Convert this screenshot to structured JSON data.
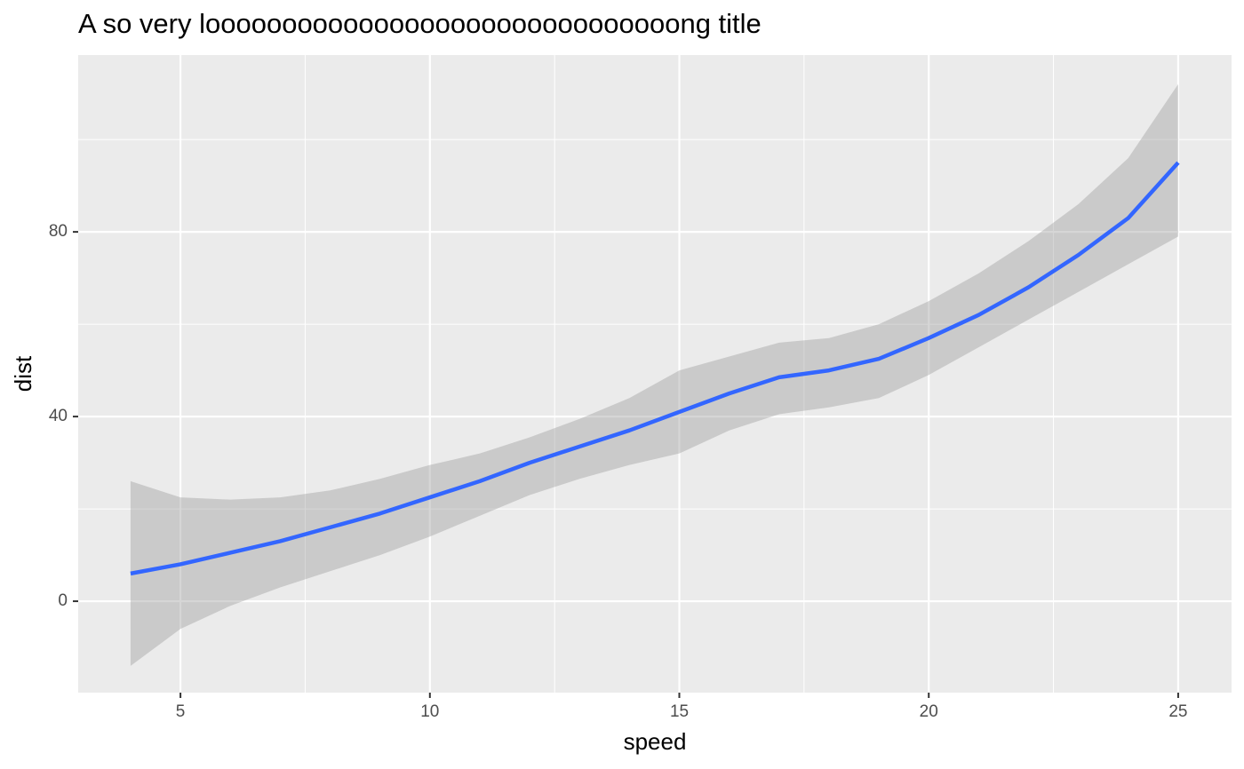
{
  "chart_data": {
    "type": "line",
    "title": "A so very looooooooooooooooooooooooooooooong title",
    "x_label": "speed",
    "y_label": "dist",
    "x": [
      4,
      5,
      6,
      7,
      8,
      9,
      10,
      11,
      12,
      13,
      14,
      15,
      16,
      17,
      18,
      19,
      20,
      21,
      22,
      23,
      24,
      25
    ],
    "series": [
      {
        "color": "#3366FF",
        "values": [
          6,
          8,
          10.5,
          13,
          16,
          19,
          22.5,
          26,
          30,
          33.5,
          37,
          41,
          45,
          48.5,
          50,
          52.5,
          57,
          62,
          68,
          75,
          83,
          95
        ],
        "lower": [
          -14,
          -6,
          -1,
          3,
          6.5,
          10,
          14,
          18.5,
          23,
          26.5,
          29.5,
          32,
          37,
          40.5,
          42,
          44,
          49,
          55,
          61,
          67,
          73,
          79
        ],
        "upper": [
          26,
          22.5,
          22,
          22.5,
          24,
          26.5,
          29.5,
          32,
          35.5,
          39.5,
          44,
          50,
          53,
          56,
          57,
          60,
          65,
          71,
          78,
          86,
          96,
          112
        ],
        "band_color": "#999999"
      }
    ],
    "xlim": [
      2.95,
      26.07
    ],
    "ylim": [
      -19.8,
      118.3
    ],
    "xticks": [
      5,
      10,
      15,
      20,
      25
    ],
    "yticks": [
      0,
      40,
      80
    ],
    "x_minor_ticks": [
      7.5,
      12.5,
      17.5,
      22.5
    ],
    "y_minor_ticks": [
      20,
      60,
      100
    ],
    "grid": true
  }
}
